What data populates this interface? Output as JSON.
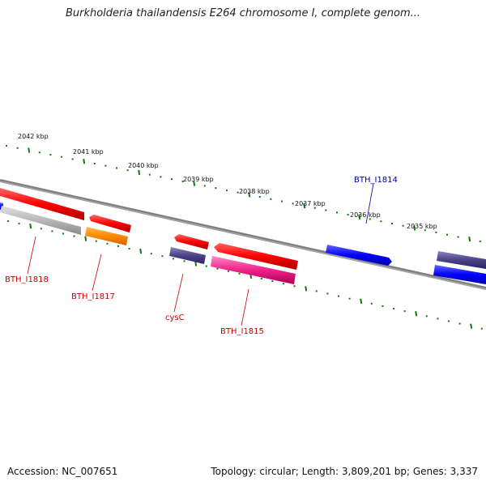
{
  "title": "Burkholderia thailandensis E264 chromosome I, complete genom...",
  "scale_ticks": [
    "2042 kbp",
    "2041 kbp",
    "2040 kbp",
    "2039 kbp",
    "2038 kbp",
    "2037 kbp",
    "2036 kbp",
    "2035 kbp"
  ],
  "genes": [
    {
      "label": "BTH_I1818",
      "color": "#cc0000"
    },
    {
      "label": "BTH_I1817",
      "color": "#cc0000"
    },
    {
      "label": "cysC",
      "color": "#cc0000"
    },
    {
      "label": "BTH_I1815",
      "color": "#cc0000"
    },
    {
      "label": "BTH_I1814",
      "color": "#0000aa"
    }
  ],
  "colors": {
    "forward_feature": "#ff0000",
    "reverse_feature": "#0000ff",
    "gray_feature": "#b8b8b8",
    "orange_feature": "#ff8800",
    "purple_feature": "#4a4488",
    "pink_feature": "#ee2288",
    "tick_color": "#117711",
    "backbone": "#777777"
  },
  "footer": {
    "accession": "Accession: NC_007651",
    "summary": "Topology: circular; Length: 3,809,201 bp; Genes: 3,337"
  }
}
